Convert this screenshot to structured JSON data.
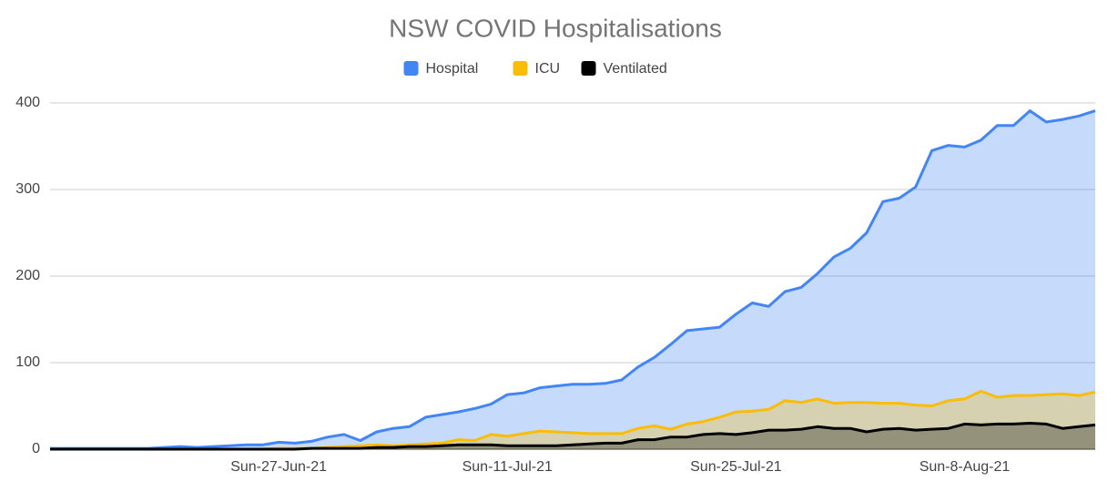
{
  "chart_data": {
    "type": "area",
    "title": "NSW COVID Hospitalisations",
    "categories": [
      null,
      null,
      null,
      null,
      null,
      null,
      null,
      null,
      null,
      null,
      null,
      null,
      null,
      null,
      "Sun-27-Jun-21",
      null,
      null,
      null,
      null,
      null,
      null,
      null,
      null,
      null,
      null,
      null,
      null,
      null,
      "Sun-11-Jul-21",
      null,
      null,
      null,
      null,
      null,
      null,
      null,
      null,
      null,
      null,
      null,
      null,
      null,
      "Sun-25-Jul-21",
      null,
      null,
      null,
      null,
      null,
      null,
      null,
      null,
      null,
      null,
      null,
      null,
      null,
      "Sun-8-Aug-21",
      null,
      null,
      null,
      null,
      null,
      null,
      null,
      null
    ],
    "series": [
      {
        "name": "Hospital",
        "color": "#4285f4",
        "values": [
          1,
          1,
          1,
          1,
          1,
          1,
          1,
          2,
          3,
          2,
          3,
          4,
          5,
          5,
          8,
          7,
          9,
          14,
          17,
          10,
          20,
          24,
          26,
          37,
          40,
          43,
          47,
          52,
          63,
          65,
          71,
          73,
          75,
          75,
          76,
          80,
          95,
          106,
          121,
          137,
          139,
          141,
          156,
          169,
          165,
          182,
          187,
          203,
          222,
          232,
          250,
          286,
          290,
          303,
          345,
          351,
          349,
          357,
          374,
          374,
          391,
          378,
          381,
          385,
          391
        ]
      },
      {
        "name": "ICU",
        "color": "#fbbc04",
        "values": [
          0,
          0,
          0,
          0,
          0,
          0,
          0,
          0,
          0,
          0,
          0,
          0,
          0,
          0,
          1,
          1,
          1,
          2,
          3,
          4,
          5,
          4,
          5,
          6,
          7,
          11,
          10,
          17,
          15,
          18,
          21,
          20,
          19,
          18,
          18,
          18,
          24,
          27,
          23,
          29,
          32,
          37,
          43,
          44,
          46,
          56,
          54,
          58,
          53,
          54,
          54,
          53,
          53,
          51,
          50,
          56,
          58,
          67,
          60,
          62,
          62,
          63,
          64,
          62,
          66
        ]
      },
      {
        "name": "Ventilated",
        "color": "#000000",
        "values": [
          0,
          0,
          0,
          0,
          0,
          0,
          0,
          0,
          0,
          0,
          0,
          0,
          0,
          0,
          0,
          0,
          1,
          1,
          1,
          1,
          2,
          2,
          3,
          3,
          4,
          5,
          5,
          5,
          4,
          4,
          4,
          4,
          5,
          6,
          7,
          7,
          11,
          11,
          14,
          14,
          17,
          18,
          17,
          19,
          22,
          22,
          23,
          26,
          24,
          24,
          20,
          23,
          24,
          22,
          23,
          24,
          29,
          28,
          29,
          29,
          30,
          29,
          24,
          26,
          28
        ]
      }
    ],
    "ylim": [
      0,
      400
    ],
    "yticks": [
      0,
      100,
      200,
      300,
      400
    ],
    "grid": true,
    "legend": "top"
  }
}
